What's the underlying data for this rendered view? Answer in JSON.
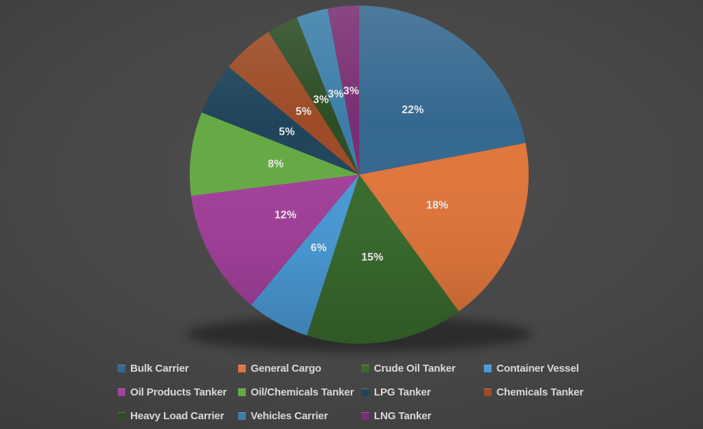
{
  "background": {
    "center_color": "#4d4d4d",
    "corner_color": "#2b2b2b"
  },
  "chart_data": {
    "type": "pie",
    "title": "",
    "categories": [
      "Bulk Carrier",
      "General Cargo",
      "Crude Oil Tanker",
      "Container Vessel",
      "Oil Products Tanker",
      "Oil/Chemicals Tanker",
      "LPG Tanker",
      "Chemicals Tanker",
      "Heavy Load Carrier",
      "Vehicles Carrier",
      "LNG Tanker"
    ],
    "values": [
      22,
      18,
      15,
      6,
      12,
      8,
      5,
      5,
      3,
      3,
      3
    ],
    "labels": [
      "22%",
      "18%",
      "15%",
      "6%",
      "12%",
      "8%",
      "5%",
      "5%",
      "3%",
      "3%",
      "3%"
    ],
    "colors": [
      "#35688f",
      "#e0763c",
      "#396b2d",
      "#4a9ad6",
      "#a2409a",
      "#65aa44",
      "#20445a",
      "#9d4b26",
      "#2d4d25",
      "#3c7ea8",
      "#792e72"
    ],
    "unit": "%",
    "start_angle_deg": 0,
    "direction": "clockwise",
    "label_position": "inside",
    "label_color": "#e9e9e9",
    "legend_position": "bottom",
    "legend_text_color": "#d9d9d9"
  }
}
